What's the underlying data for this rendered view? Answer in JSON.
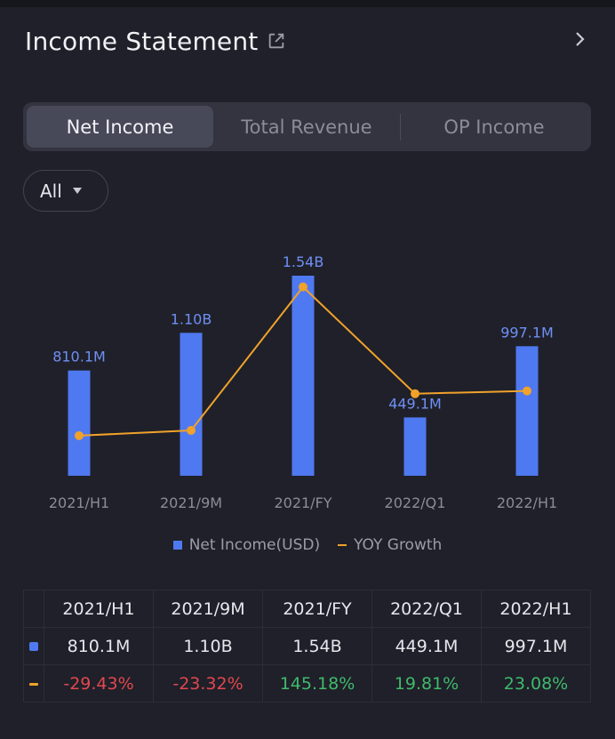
{
  "header": {
    "title": "Income Statement"
  },
  "tabs": [
    {
      "label": "Net Income",
      "active": true
    },
    {
      "label": "Total Revenue",
      "active": false
    },
    {
      "label": "OP Income",
      "active": false
    }
  ],
  "filter": {
    "selected": "All"
  },
  "colors": {
    "bar": "#4f79f0",
    "line": "#f0a22b",
    "positive": "#3fba6c",
    "negative": "#e2474f"
  },
  "chart_data": {
    "type": "bar",
    "categories": [
      "2021/H1",
      "2021/9M",
      "2021/FY",
      "2022/Q1",
      "2022/H1"
    ],
    "series": [
      {
        "name": "Net Income(USD)",
        "type": "bar",
        "values": [
          810.1,
          1100,
          1540,
          449.1,
          997.1
        ],
        "labels": [
          "810.1M",
          "1.10B",
          "1.54B",
          "449.1M",
          "997.1M"
        ]
      },
      {
        "name": "YOY Growth",
        "type": "line",
        "values": [
          -29.43,
          -23.32,
          145.18,
          19.81,
          23.08
        ]
      }
    ]
  },
  "table": {
    "headers": [
      "2021/H1",
      "2021/9M",
      "2021/FY",
      "2022/Q1",
      "2022/H1"
    ],
    "net_income": [
      "810.1M",
      "1.10B",
      "1.54B",
      "449.1M",
      "997.1M"
    ],
    "yoy": [
      "-29.43%",
      "-23.32%",
      "145.18%",
      "19.81%",
      "23.08%"
    ]
  }
}
